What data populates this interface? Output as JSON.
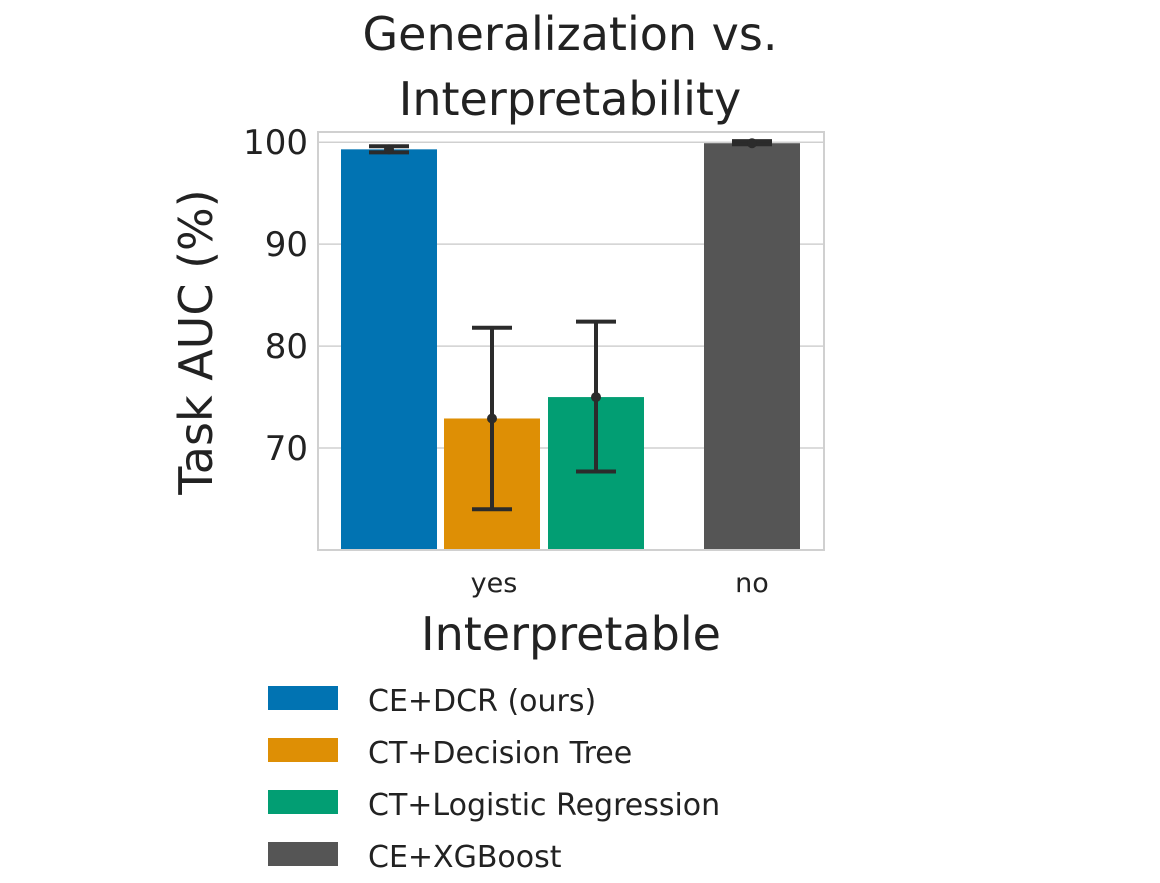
{
  "chart_data": {
    "type": "bar",
    "title_lines": [
      "Generalization vs.",
      "Interpretability"
    ],
    "xlabel": "Interpretable",
    "ylabel": "Task AUC (%)",
    "categories": [
      "yes",
      "no"
    ],
    "ylim": [
      60,
      101
    ],
    "yticks": [
      70,
      80,
      90,
      100
    ],
    "grid": true,
    "legend_placement": "below",
    "series": [
      {
        "name": "CE+DCR (ours)",
        "color": "#0173b2",
        "category": "yes",
        "value": 99.3,
        "err_low": 99.0,
        "err_high": 99.6
      },
      {
        "name": "CT+Decision Tree",
        "color": "#de8f05",
        "category": "yes",
        "value": 72.9,
        "err_low": 64.0,
        "err_high": 81.8
      },
      {
        "name": "CT+Logistic Regression",
        "color": "#029e73",
        "category": "yes",
        "value": 75.0,
        "err_low": 67.7,
        "err_high": 82.4
      },
      {
        "name": "CE+XGBoost",
        "color": "#555555",
        "category": "no",
        "value": 99.9,
        "err_low": 99.8,
        "err_high": 100.1
      }
    ]
  }
}
